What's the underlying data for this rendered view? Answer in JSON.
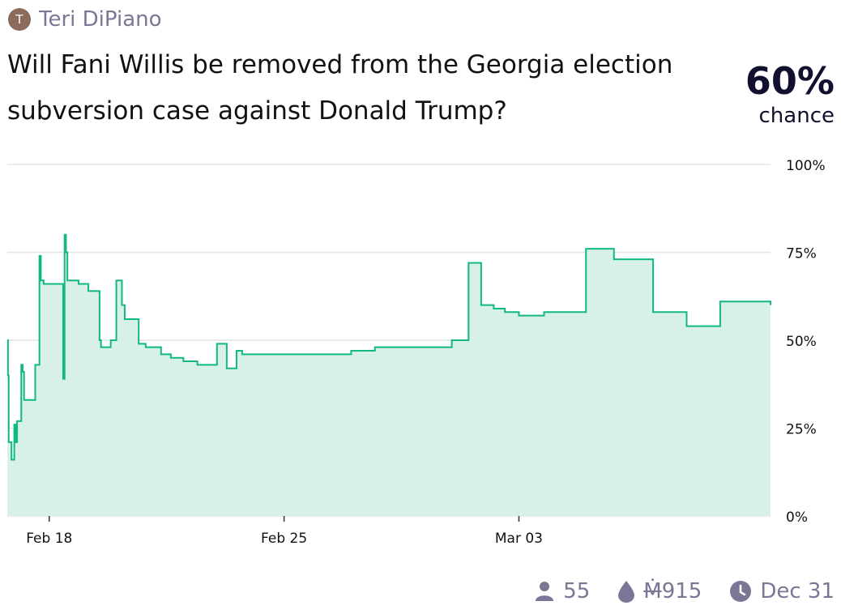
{
  "author": {
    "initial": "T",
    "name": "Teri DiPiano"
  },
  "question": "Will Fani Willis be removed from the Georgia election subversion case against Donald Trump?",
  "probability": {
    "value": "60%",
    "label": "chance"
  },
  "footer": {
    "traders": "55",
    "volume_symbol": "Ṁ",
    "volume_amount": "915",
    "close_date": "Dec 31",
    "icons": [
      "user-icon",
      "droplet-icon",
      "clock-icon"
    ]
  },
  "colors": {
    "line": "#11b981",
    "fill": "#d7f1e6",
    "grid": "#e2e4e8",
    "text": "#11102f",
    "muted": "#7a7796"
  },
  "chart_data": {
    "type": "area",
    "x_unit": "date (2024)",
    "xlim": [
      "2024-02-16T18:00",
      "2024-03-10T12:00"
    ],
    "ylim": [
      0,
      100
    ],
    "y_unit": "%",
    "yticks": [
      0,
      25,
      50,
      75,
      100
    ],
    "ytick_labels": [
      "0%",
      "25%",
      "50%",
      "75%",
      "100%"
    ],
    "xticks": [
      {
        "x": "2024-02-18T00:00",
        "label": "Feb 18"
      },
      {
        "x": "2024-02-25T00:00",
        "label": "Feb 25"
      },
      {
        "x": "2024-03-03T00:00",
        "label": "Mar 03"
      }
    ],
    "grid": true,
    "step": true,
    "series": [
      {
        "points": [
          [
            "2024-02-16T18:00",
            50
          ],
          [
            "2024-02-16T18:30",
            40
          ],
          [
            "2024-02-16T19:00",
            21
          ],
          [
            "2024-02-16T21:00",
            16
          ],
          [
            "2024-02-16T23:00",
            26
          ],
          [
            "2024-02-17T00:00",
            21
          ],
          [
            "2024-02-17T01:00",
            27
          ],
          [
            "2024-02-17T04:00",
            43
          ],
          [
            "2024-02-17T05:00",
            41
          ],
          [
            "2024-02-17T06:00",
            33
          ],
          [
            "2024-02-17T14:00",
            43
          ],
          [
            "2024-02-17T17:00",
            74
          ],
          [
            "2024-02-17T18:00",
            67
          ],
          [
            "2024-02-17T20:00",
            66
          ],
          [
            "2024-02-18T10:00",
            39
          ],
          [
            "2024-02-18T11:00",
            80
          ],
          [
            "2024-02-18T12:00",
            75
          ],
          [
            "2024-02-18T13:00",
            67
          ],
          [
            "2024-02-18T21:00",
            66
          ],
          [
            "2024-02-19T04:00",
            64
          ],
          [
            "2024-02-19T12:00",
            50
          ],
          [
            "2024-02-19T13:00",
            48
          ],
          [
            "2024-02-19T20:00",
            50
          ],
          [
            "2024-02-20T00:00",
            67
          ],
          [
            "2024-02-20T04:00",
            60
          ],
          [
            "2024-02-20T06:00",
            56
          ],
          [
            "2024-02-20T16:00",
            49
          ],
          [
            "2024-02-20T21:00",
            48
          ],
          [
            "2024-02-21T08:00",
            46
          ],
          [
            "2024-02-21T15:00",
            45
          ],
          [
            "2024-02-22T00:00",
            44
          ],
          [
            "2024-02-22T10:00",
            43
          ],
          [
            "2024-02-23T00:00",
            49
          ],
          [
            "2024-02-23T07:00",
            42
          ],
          [
            "2024-02-23T14:00",
            47
          ],
          [
            "2024-02-23T18:00",
            46
          ],
          [
            "2024-02-25T18:00",
            46
          ],
          [
            "2024-02-27T00:00",
            47
          ],
          [
            "2024-02-27T17:00",
            48
          ],
          [
            "2024-02-28T10:00",
            48
          ],
          [
            "2024-02-29T12:00",
            48
          ],
          [
            "2024-03-01T00:00",
            50
          ],
          [
            "2024-03-01T12:00",
            72
          ],
          [
            "2024-03-01T21:00",
            60
          ],
          [
            "2024-03-02T06:00",
            59
          ],
          [
            "2024-03-02T14:00",
            58
          ],
          [
            "2024-03-03T00:00",
            57
          ],
          [
            "2024-03-03T18:00",
            58
          ],
          [
            "2024-03-05T00:00",
            76
          ],
          [
            "2024-03-05T20:00",
            73
          ],
          [
            "2024-03-07T00:00",
            58
          ],
          [
            "2024-03-08T00:00",
            54
          ],
          [
            "2024-03-09T00:00",
            61
          ],
          [
            "2024-03-10T12:00",
            60
          ]
        ]
      }
    ]
  }
}
